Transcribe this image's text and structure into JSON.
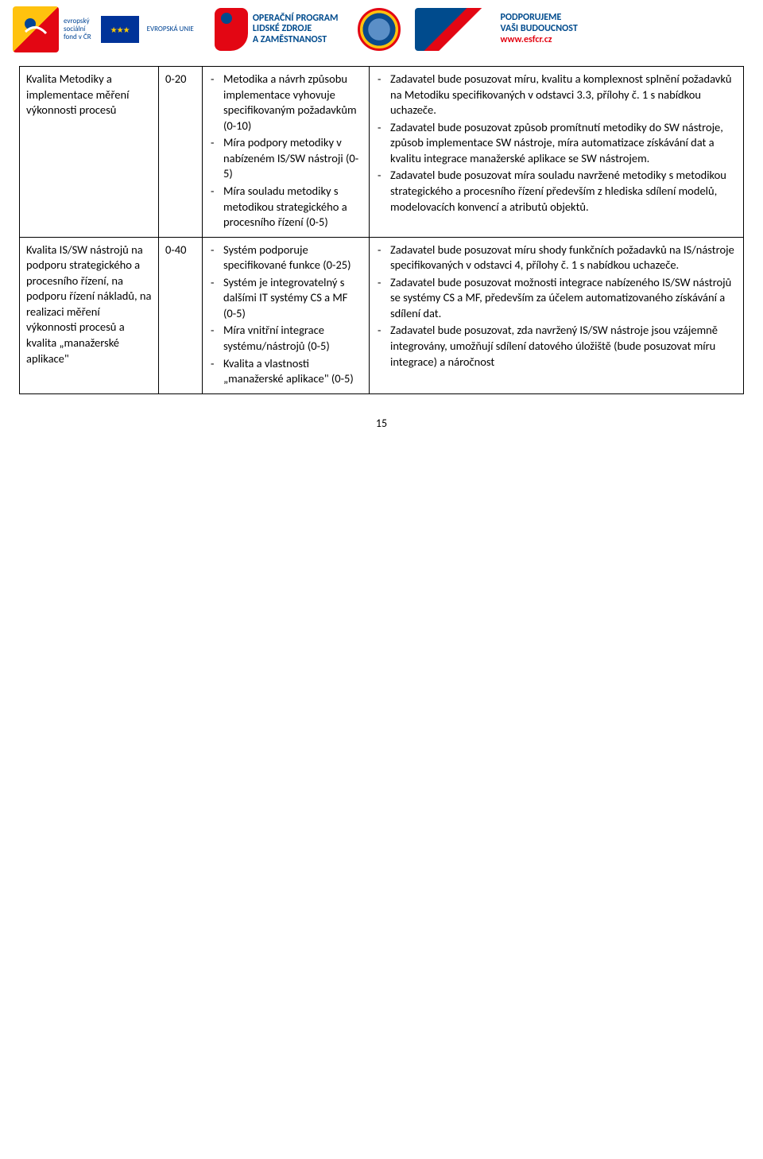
{
  "header": {
    "esf_lines": [
      "evropský",
      "sociální",
      "fond v ČR"
    ],
    "eu_label": "EVROPSKÁ UNIE",
    "op_lines": [
      "OPERAČNÍ PROGRAM",
      "LIDSKÉ ZDROJE",
      "A ZAMĚSTNANOST"
    ],
    "support_lines": [
      "PODPORUJEME",
      "VAŠI BUDOUCNOST"
    ],
    "support_url": "www.esfcr.cz"
  },
  "rows": [
    {
      "c1": "Kvalita Metodiky a implementace měření výkonnosti procesů",
      "c2": "0-20",
      "c3": [
        "Metodika a návrh způsobu implementace vyhovuje specifikovaným požadavkům (0-10)",
        "Míra podpory metodiky v nabízeném IS/SW nástroji (0-5)",
        "Míra souladu metodiky s metodikou strategického a procesního řízení (0-5)"
      ],
      "c4": [
        "Zadavatel bude posuzovat míru, kvalitu a komplexnost splnění požadavků na Metodiku specifikovaných v odstavci 3.3, přílohy č. 1 s nabídkou uchazeče.",
        "Zadavatel bude posuzovat způsob promítnutí metodiky do SW nástroje, způsob implementace SW nástroje, míra automatizace získávání dat a kvalitu integrace manažerské aplikace se SW nástrojem.",
        "Zadavatel bude posuzovat míra souladu navržené metodiky s metodikou strategického a procesního řízení především z hlediska sdílení modelů, modelovacích konvencí a atributů objektů."
      ]
    },
    {
      "c1": "Kvalita IS/SW nástrojů na podporu strategického a procesního řízení, na podporu řízení nákladů, na realizaci měření výkonnosti procesů a kvalita „manažerské aplikace\"",
      "c2": "0-40",
      "c3": [
        "Systém podporuje specifikované funkce (0-25)",
        "Systém je integrovatelný s dalšími IT systémy CS a MF (0-5)",
        "Míra vnitřní integrace systému/nástrojů (0-5)",
        "Kvalita a vlastnosti „manažerské aplikace\" (0-5)"
      ],
      "c4": [
        "Zadavatel bude posuzovat míru shody funkčních požadavků na IS/nástroje specifikovaných v odstavci 4, přílohy č. 1 s nabídkou uchazeče.",
        "Zadavatel bude posuzovat možnosti integrace nabízeného IS/SW nástrojů se systémy CS a MF, především za účelem automatizovaného získávání a sdílení dat.",
        "Zadavatel bude posuzovat, zda navržený IS/SW nástroje jsou vzájemně integrovány, umožňují sdílení datového úložiště (bude posuzovat míru integrace) a náročnost"
      ]
    }
  ],
  "page_number": "15"
}
